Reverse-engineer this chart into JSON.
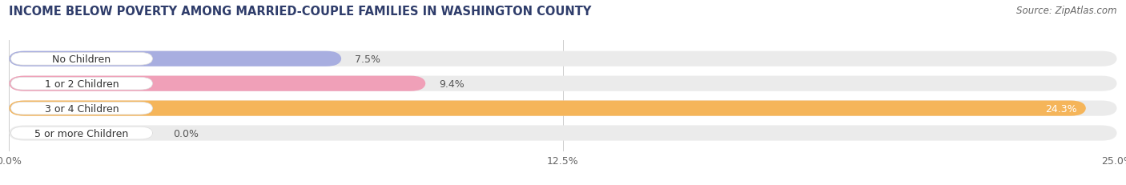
{
  "title": "INCOME BELOW POVERTY AMONG MARRIED-COUPLE FAMILIES IN WASHINGTON COUNTY",
  "source": "Source: ZipAtlas.com",
  "categories": [
    "No Children",
    "1 or 2 Children",
    "3 or 4 Children",
    "5 or more Children"
  ],
  "values": [
    7.5,
    9.4,
    24.3,
    0.0
  ],
  "value_labels": [
    "7.5%",
    "9.4%",
    "24.3%",
    "0.0%"
  ],
  "bar_colors": [
    "#a8aee0",
    "#f0a0b8",
    "#f5b55a",
    "#f0a0b8"
  ],
  "xlim": [
    0,
    25.0
  ],
  "xticks": [
    0.0,
    12.5,
    25.0
  ],
  "xticklabels": [
    "0.0%",
    "12.5%",
    "25.0%"
  ],
  "background_color": "#ffffff",
  "bar_bg_color": "#ebebeb",
  "label_bg_color": "#ffffff",
  "title_fontsize": 10.5,
  "source_fontsize": 8.5,
  "label_fontsize": 9,
  "value_fontsize": 9,
  "tick_fontsize": 9,
  "bar_height": 0.62,
  "bar_gap": 0.08,
  "figsize": [
    14.06,
    2.32
  ]
}
